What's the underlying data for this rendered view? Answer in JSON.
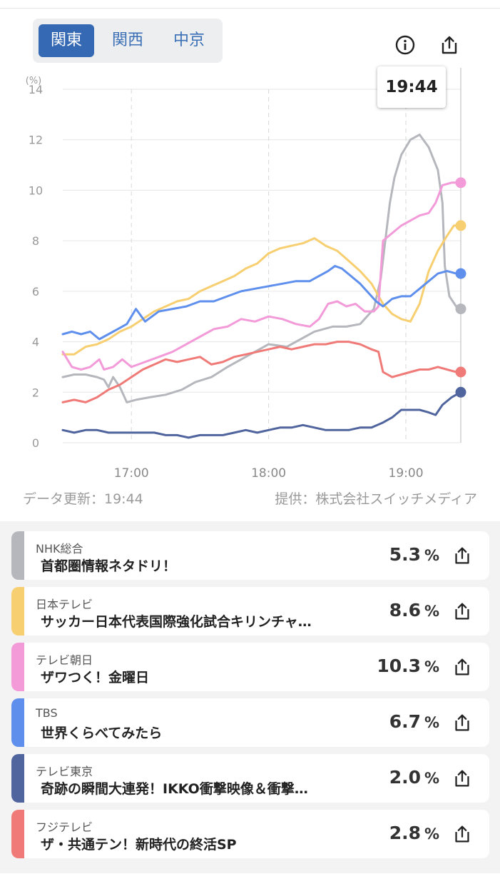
{
  "regions": {
    "tabs": [
      {
        "label": "関東",
        "active": true
      },
      {
        "label": "関西",
        "active": false
      },
      {
        "label": "中京",
        "active": false
      }
    ]
  },
  "header_icons": {
    "info": "info-icon",
    "share": "share-icon"
  },
  "tooltip": {
    "time": "19:44"
  },
  "chart_data": {
    "type": "line",
    "ylabel": "(%)",
    "ylim": [
      0,
      14
    ],
    "yticks": [
      "0",
      "2",
      "4",
      "6",
      "8",
      "10",
      "12",
      "14"
    ],
    "xticks": [
      {
        "label": "17:00",
        "t": 30
      },
      {
        "label": "18:00",
        "t": 90
      },
      {
        "label": "19:00",
        "t": 150
      }
    ],
    "xlim": [
      0,
      174
    ],
    "highlight_t": 174,
    "grid": true,
    "series": [
      {
        "name": "NHK総合",
        "color": "#b5b7bd",
        "points": [
          [
            0,
            2.6
          ],
          [
            5,
            2.7
          ],
          [
            10,
            2.7
          ],
          [
            15,
            2.6
          ],
          [
            18,
            2.5
          ],
          [
            20,
            2.2
          ],
          [
            22,
            2.6
          ],
          [
            25,
            2.2
          ],
          [
            28,
            1.6
          ],
          [
            32,
            1.7
          ],
          [
            38,
            1.8
          ],
          [
            45,
            1.9
          ],
          [
            52,
            2.1
          ],
          [
            58,
            2.4
          ],
          [
            65,
            2.6
          ],
          [
            72,
            3.0
          ],
          [
            78,
            3.3
          ],
          [
            84,
            3.6
          ],
          [
            90,
            3.9
          ],
          [
            98,
            3.8
          ],
          [
            104,
            4.1
          ],
          [
            110,
            4.4
          ],
          [
            118,
            4.6
          ],
          [
            124,
            4.6
          ],
          [
            130,
            4.7
          ],
          [
            136,
            5.3
          ],
          [
            139,
            6.5
          ],
          [
            141,
            8.0
          ],
          [
            143,
            9.5
          ],
          [
            145,
            10.5
          ],
          [
            148,
            11.4
          ],
          [
            152,
            12.0
          ],
          [
            156,
            12.2
          ],
          [
            160,
            11.7
          ],
          [
            164,
            10.8
          ],
          [
            166,
            9.5
          ],
          [
            167,
            7.0
          ],
          [
            169,
            5.8
          ],
          [
            172,
            5.4
          ],
          [
            174,
            5.3
          ]
        ]
      },
      {
        "name": "日本テレビ",
        "color": "#f7cf70",
        "points": [
          [
            0,
            3.5
          ],
          [
            5,
            3.5
          ],
          [
            10,
            3.8
          ],
          [
            15,
            3.9
          ],
          [
            20,
            4.1
          ],
          [
            25,
            4.4
          ],
          [
            30,
            4.6
          ],
          [
            35,
            4.9
          ],
          [
            40,
            5.2
          ],
          [
            45,
            5.4
          ],
          [
            50,
            5.6
          ],
          [
            55,
            5.7
          ],
          [
            60,
            6.0
          ],
          [
            65,
            6.2
          ],
          [
            70,
            6.4
          ],
          [
            75,
            6.6
          ],
          [
            80,
            6.9
          ],
          [
            85,
            7.1
          ],
          [
            90,
            7.5
          ],
          [
            95,
            7.7
          ],
          [
            100,
            7.8
          ],
          [
            105,
            7.9
          ],
          [
            110,
            8.1
          ],
          [
            115,
            7.8
          ],
          [
            120,
            7.6
          ],
          [
            125,
            7.2
          ],
          [
            130,
            6.8
          ],
          [
            135,
            6.3
          ],
          [
            140,
            5.5
          ],
          [
            144,
            5.1
          ],
          [
            148,
            4.9
          ],
          [
            152,
            4.8
          ],
          [
            156,
            5.5
          ],
          [
            160,
            6.8
          ],
          [
            164,
            7.6
          ],
          [
            168,
            8.2
          ],
          [
            171,
            8.6
          ],
          [
            174,
            8.6
          ]
        ]
      },
      {
        "name": "テレビ朝日",
        "color": "#f39ad9",
        "points": [
          [
            0,
            3.6
          ],
          [
            4,
            3.0
          ],
          [
            8,
            2.9
          ],
          [
            12,
            3.0
          ],
          [
            16,
            3.3
          ],
          [
            18,
            2.9
          ],
          [
            22,
            3.0
          ],
          [
            26,
            3.3
          ],
          [
            30,
            3.0
          ],
          [
            36,
            3.2
          ],
          [
            42,
            3.4
          ],
          [
            48,
            3.6
          ],
          [
            54,
            3.9
          ],
          [
            60,
            4.2
          ],
          [
            66,
            4.5
          ],
          [
            72,
            4.6
          ],
          [
            78,
            4.9
          ],
          [
            84,
            4.8
          ],
          [
            90,
            5.0
          ],
          [
            96,
            4.9
          ],
          [
            102,
            4.7
          ],
          [
            108,
            4.6
          ],
          [
            112,
            4.9
          ],
          [
            116,
            5.5
          ],
          [
            120,
            5.6
          ],
          [
            124,
            5.4
          ],
          [
            128,
            5.5
          ],
          [
            132,
            5.2
          ],
          [
            136,
            5.2
          ],
          [
            138,
            5.4
          ],
          [
            140,
            8.0
          ],
          [
            144,
            8.3
          ],
          [
            148,
            8.6
          ],
          [
            152,
            8.8
          ],
          [
            156,
            9.0
          ],
          [
            160,
            9.1
          ],
          [
            163,
            9.5
          ],
          [
            166,
            10.2
          ],
          [
            170,
            10.3
          ],
          [
            174,
            10.3
          ]
        ]
      },
      {
        "name": "TBS",
        "color": "#5e8fec",
        "points": [
          [
            0,
            4.3
          ],
          [
            4,
            4.4
          ],
          [
            8,
            4.3
          ],
          [
            12,
            4.4
          ],
          [
            16,
            4.1
          ],
          [
            20,
            4.3
          ],
          [
            24,
            4.5
          ],
          [
            28,
            4.7
          ],
          [
            32,
            5.3
          ],
          [
            36,
            4.8
          ],
          [
            42,
            5.2
          ],
          [
            48,
            5.3
          ],
          [
            54,
            5.4
          ],
          [
            60,
            5.6
          ],
          [
            66,
            5.6
          ],
          [
            72,
            5.8
          ],
          [
            78,
            6.0
          ],
          [
            84,
            6.1
          ],
          [
            90,
            6.2
          ],
          [
            96,
            6.3
          ],
          [
            102,
            6.4
          ],
          [
            108,
            6.4
          ],
          [
            112,
            6.6
          ],
          [
            116,
            6.8
          ],
          [
            119,
            7.0
          ],
          [
            122,
            6.9
          ],
          [
            126,
            6.6
          ],
          [
            130,
            6.3
          ],
          [
            134,
            5.9
          ],
          [
            137,
            5.6
          ],
          [
            140,
            5.4
          ],
          [
            144,
            5.7
          ],
          [
            148,
            5.8
          ],
          [
            152,
            5.8
          ],
          [
            156,
            6.1
          ],
          [
            160,
            6.4
          ],
          [
            164,
            6.7
          ],
          [
            168,
            6.8
          ],
          [
            172,
            6.7
          ],
          [
            174,
            6.7
          ]
        ]
      },
      {
        "name": "テレビ東京",
        "color": "#50649e",
        "points": [
          [
            0,
            0.5
          ],
          [
            5,
            0.4
          ],
          [
            10,
            0.5
          ],
          [
            15,
            0.5
          ],
          [
            20,
            0.4
          ],
          [
            25,
            0.4
          ],
          [
            30,
            0.4
          ],
          [
            35,
            0.4
          ],
          [
            40,
            0.4
          ],
          [
            45,
            0.3
          ],
          [
            50,
            0.3
          ],
          [
            55,
            0.2
          ],
          [
            60,
            0.3
          ],
          [
            65,
            0.3
          ],
          [
            70,
            0.3
          ],
          [
            75,
            0.4
          ],
          [
            80,
            0.5
          ],
          [
            85,
            0.4
          ],
          [
            90,
            0.5
          ],
          [
            95,
            0.6
          ],
          [
            100,
            0.6
          ],
          [
            105,
            0.7
          ],
          [
            110,
            0.6
          ],
          [
            115,
            0.5
          ],
          [
            120,
            0.5
          ],
          [
            125,
            0.5
          ],
          [
            130,
            0.6
          ],
          [
            135,
            0.6
          ],
          [
            140,
            0.8
          ],
          [
            144,
            1.0
          ],
          [
            148,
            1.3
          ],
          [
            152,
            1.3
          ],
          [
            156,
            1.3
          ],
          [
            160,
            1.2
          ],
          [
            163,
            1.1
          ],
          [
            166,
            1.5
          ],
          [
            170,
            1.8
          ],
          [
            174,
            2.0
          ]
        ]
      },
      {
        "name": "フジテレビ",
        "color": "#ef7a77",
        "points": [
          [
            0,
            1.6
          ],
          [
            5,
            1.7
          ],
          [
            10,
            1.6
          ],
          [
            15,
            1.8
          ],
          [
            20,
            2.1
          ],
          [
            25,
            2.3
          ],
          [
            30,
            2.6
          ],
          [
            35,
            2.9
          ],
          [
            40,
            3.1
          ],
          [
            45,
            3.3
          ],
          [
            50,
            3.2
          ],
          [
            55,
            3.3
          ],
          [
            60,
            3.4
          ],
          [
            65,
            3.1
          ],
          [
            70,
            3.2
          ],
          [
            75,
            3.4
          ],
          [
            80,
            3.5
          ],
          [
            85,
            3.6
          ],
          [
            90,
            3.7
          ],
          [
            95,
            3.8
          ],
          [
            100,
            3.7
          ],
          [
            105,
            3.8
          ],
          [
            110,
            3.9
          ],
          [
            115,
            3.9
          ],
          [
            120,
            4.0
          ],
          [
            125,
            4.0
          ],
          [
            130,
            3.9
          ],
          [
            135,
            3.7
          ],
          [
            138,
            3.6
          ],
          [
            140,
            2.8
          ],
          [
            144,
            2.6
          ],
          [
            148,
            2.7
          ],
          [
            152,
            2.8
          ],
          [
            156,
            2.9
          ],
          [
            160,
            2.9
          ],
          [
            164,
            3.0
          ],
          [
            168,
            2.9
          ],
          [
            172,
            2.8
          ],
          [
            174,
            2.8
          ]
        ]
      }
    ]
  },
  "footer": {
    "updated": "データ更新：19:44",
    "provider": "提供：株式会社スイッチメディア"
  },
  "channels": [
    {
      "channel": "NHK総合",
      "program": "首都圏情報ネタドリ！",
      "rate": "5.3",
      "unit": "%",
      "color": "#b5b7bd"
    },
    {
      "channel": "日本テレビ",
      "program": "サッカー日本代表国際強化試合キリンチャ…",
      "rate": "8.6",
      "unit": "%",
      "color": "#f7cf70"
    },
    {
      "channel": "テレビ朝日",
      "program": "ザワつく！金曜日",
      "rate": "10.3",
      "unit": "%",
      "color": "#f39ad9"
    },
    {
      "channel": "TBS",
      "program": "世界くらべてみたら",
      "rate": "6.7",
      "unit": "%",
      "color": "#5e8fec"
    },
    {
      "channel": "テレビ東京",
      "program": "奇跡の瞬間大連発！IKKO衝撃映像＆衝撃…",
      "rate": "2.0",
      "unit": "%",
      "color": "#50649e"
    },
    {
      "channel": "フジテレビ",
      "program": "ザ・共通テン！新時代の終活SP",
      "rate": "2.8",
      "unit": "%",
      "color": "#ef7a77"
    }
  ]
}
